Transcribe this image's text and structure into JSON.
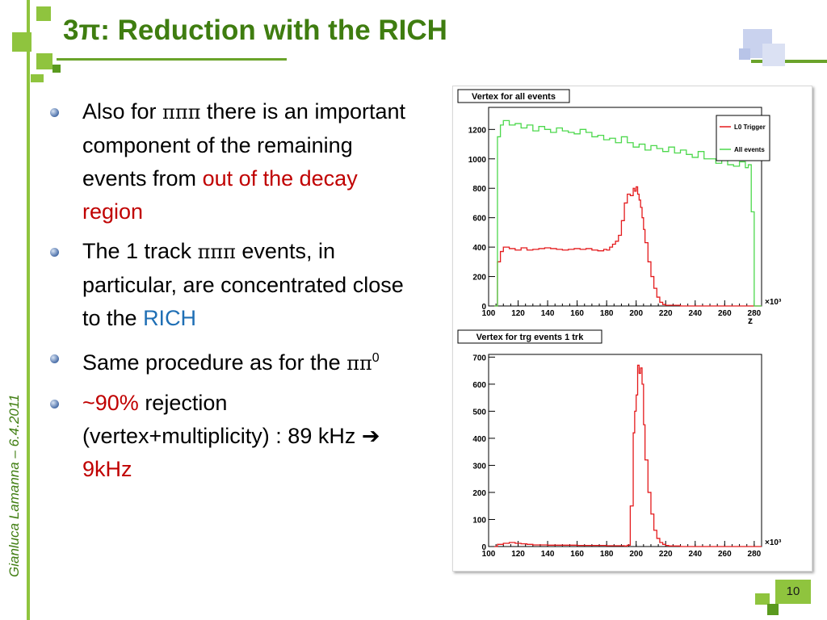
{
  "slide": {
    "title": "3π: Reduction with the RICH",
    "author_date": "Gianluca Lamanna – 6.4.2011",
    "page_number": "10",
    "accent_color": "#3f7d10",
    "line_color": "#8fc43e"
  },
  "bullets": [
    {
      "pre": "Also for ",
      "sym": "πππ",
      "mid": " there is an important component of the remaining events from ",
      "highlight": "out of the decay region",
      "highlight_color": "#c00000"
    },
    {
      "pre": "The 1 track ",
      "sym": "πππ",
      "mid": " events, in particular, are concentrated close to the ",
      "highlight": "RICH",
      "highlight_color": "#1f6fb5"
    },
    {
      "pre": "Same procedure as for the ",
      "sym": "ππ",
      "sup": "0"
    },
    {
      "lead": "~90%",
      "lead_color": "#c00000",
      "text1": " rejection (vertex+multiplicity) : 89 kHz ",
      "arrow": "➔",
      "tail": "9kHz",
      "tail_color": "#c00000"
    }
  ],
  "chart_data": [
    {
      "type": "line",
      "title": "Vertex for all events",
      "xlabel": "z",
      "x_multiplier": "×10³",
      "xlim": [
        100,
        285
      ],
      "ylim": [
        0,
        1350
      ],
      "xticks": [
        100,
        120,
        140,
        160,
        180,
        200,
        220,
        240,
        260,
        280
      ],
      "yticks": [
        0,
        200,
        400,
        600,
        800,
        1000,
        1200
      ],
      "legend": "top-right",
      "series": [
        {
          "name": "L0 Trigger",
          "color": "#e41a1c",
          "x": [
            104,
            106,
            108,
            110,
            114,
            118,
            122,
            126,
            130,
            134,
            138,
            142,
            146,
            150,
            154,
            158,
            162,
            166,
            170,
            174,
            178,
            180,
            182,
            184,
            186,
            188,
            190,
            192,
            194,
            196,
            198,
            199,
            200,
            201,
            202,
            203,
            204,
            205,
            206,
            208,
            210,
            212,
            214,
            216,
            218,
            220,
            230,
            240,
            250,
            260,
            270,
            280,
            285
          ],
          "y": [
            0,
            300,
            370,
            400,
            390,
            380,
            395,
            380,
            385,
            390,
            395,
            390,
            385,
            380,
            385,
            390,
            385,
            390,
            380,
            375,
            385,
            380,
            400,
            420,
            440,
            480,
            580,
            700,
            760,
            750,
            800,
            780,
            810,
            760,
            720,
            670,
            600,
            520,
            430,
            300,
            200,
            120,
            60,
            25,
            10,
            5,
            0,
            0,
            0,
            0,
            0,
            0,
            0
          ]
        },
        {
          "name": "All events",
          "color": "#4cd84c",
          "x": [
            104,
            106,
            108,
            110,
            114,
            118,
            122,
            126,
            130,
            134,
            138,
            142,
            146,
            150,
            154,
            158,
            162,
            166,
            170,
            174,
            178,
            182,
            186,
            190,
            194,
            198,
            202,
            206,
            210,
            214,
            218,
            222,
            226,
            230,
            234,
            238,
            242,
            246,
            250,
            254,
            258,
            262,
            266,
            270,
            274,
            276,
            278,
            280,
            285
          ],
          "y": [
            0,
            1150,
            1230,
            1260,
            1230,
            1240,
            1210,
            1230,
            1190,
            1220,
            1200,
            1180,
            1210,
            1190,
            1180,
            1170,
            1200,
            1180,
            1150,
            1160,
            1130,
            1140,
            1110,
            1150,
            1110,
            1080,
            1100,
            1060,
            1090,
            1070,
            1050,
            1080,
            1040,
            1060,
            1030,
            1010,
            1050,
            1000,
            1000,
            970,
            990,
            960,
            950,
            980,
            940,
            960,
            640,
            0,
            0
          ]
        }
      ]
    },
    {
      "type": "line",
      "title": "Vertex for trg events 1 trk",
      "xlabel": "",
      "x_multiplier": "×10³",
      "xlim": [
        100,
        285
      ],
      "ylim": [
        0,
        710
      ],
      "xticks": [
        100,
        120,
        140,
        160,
        180,
        200,
        220,
        240,
        260,
        280
      ],
      "yticks": [
        0,
        100,
        200,
        300,
        400,
        500,
        600,
        700
      ],
      "series": [
        {
          "name": "",
          "color": "#e41a1c",
          "x": [
            104,
            106,
            110,
            114,
            118,
            122,
            126,
            130,
            140,
            160,
            180,
            192,
            194,
            196,
            198,
            199,
            200,
            201,
            202,
            203,
            204,
            205,
            206,
            208,
            210,
            212,
            214,
            216,
            218,
            220,
            222,
            230,
            260,
            285
          ],
          "y": [
            0,
            8,
            12,
            15,
            12,
            10,
            8,
            6,
            5,
            4,
            3,
            2,
            5,
            150,
            420,
            500,
            560,
            670,
            640,
            660,
            600,
            450,
            320,
            200,
            120,
            60,
            30,
            15,
            8,
            4,
            2,
            0,
            0,
            0
          ]
        }
      ]
    }
  ]
}
